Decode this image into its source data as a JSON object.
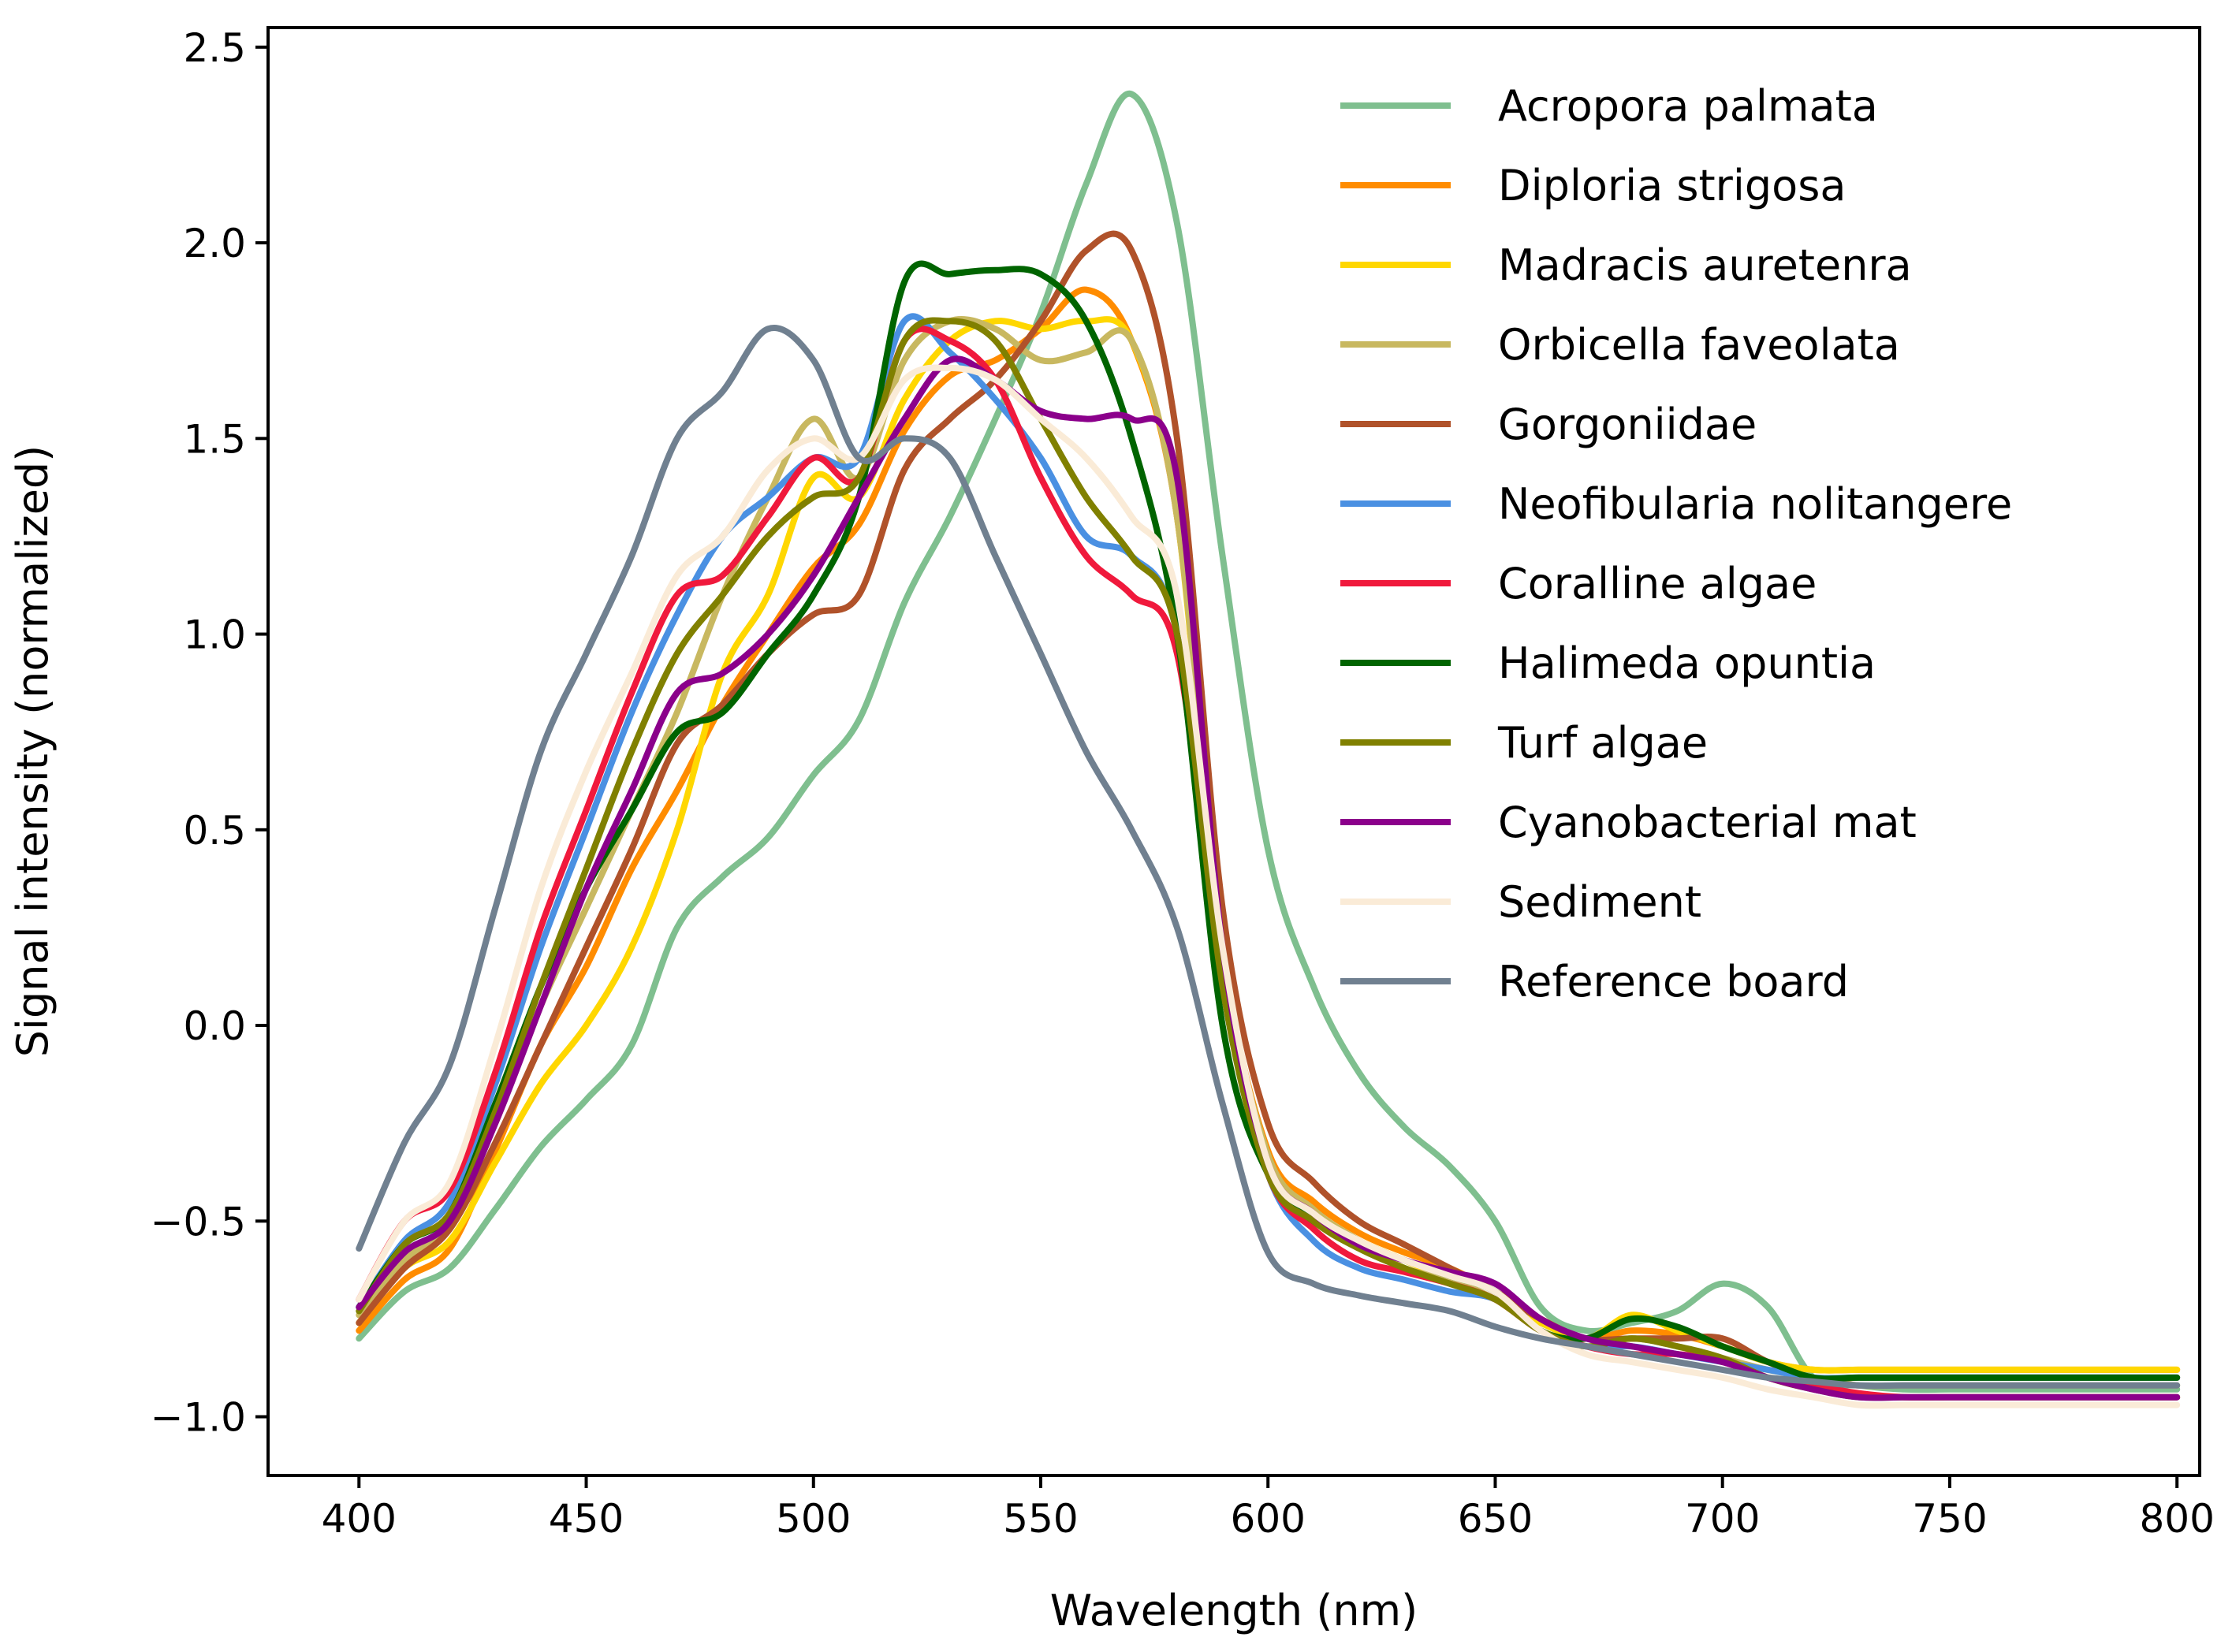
{
  "chart_data": {
    "type": "line",
    "title": "",
    "xlabel": "Wavelength (nm)",
    "ylabel": "Signal intensity (normalized)",
    "xlim": [
      380,
      805
    ],
    "ylim": [
      -1.15,
      2.55
    ],
    "xticks": [
      400,
      450,
      500,
      550,
      600,
      650,
      700,
      750,
      800
    ],
    "xtick_labels": [
      "400",
      "450",
      "500",
      "550",
      "600",
      "650",
      "700",
      "750",
      "800"
    ],
    "yticks": [
      -1.0,
      -0.5,
      0.0,
      0.5,
      1.0,
      1.5,
      2.0,
      2.5
    ],
    "ytick_labels": [
      "−1.0",
      "−0.5",
      "0.0",
      "0.5",
      "1.0",
      "1.5",
      "2.0",
      "2.5"
    ],
    "grid": false,
    "legend_position": "top-right",
    "x": [
      400,
      410,
      420,
      430,
      440,
      450,
      460,
      470,
      480,
      490,
      500,
      510,
      520,
      530,
      540,
      550,
      560,
      570,
      580,
      590,
      600,
      610,
      620,
      630,
      640,
      650,
      660,
      670,
      680,
      690,
      700,
      710,
      720,
      730,
      740,
      750,
      760,
      770,
      780,
      790,
      800
    ],
    "series": [
      {
        "name": "Acropora palmata",
        "color": "#7fbf8f",
        "values": [
          -0.8,
          -0.68,
          -0.62,
          -0.47,
          -0.31,
          -0.19,
          -0.05,
          0.25,
          0.38,
          0.48,
          0.64,
          0.78,
          1.08,
          1.3,
          1.55,
          1.82,
          2.15,
          2.38,
          2.05,
          1.2,
          0.45,
          0.1,
          -0.12,
          -0.26,
          -0.36,
          -0.5,
          -0.72,
          -0.78,
          -0.76,
          -0.73,
          -0.66,
          -0.72,
          -0.9,
          -0.92,
          -0.93,
          -0.93,
          -0.93,
          -0.93,
          -0.93,
          -0.93,
          -0.93
        ]
      },
      {
        "name": "Diploria strigosa",
        "color": "#ff8c00",
        "values": [
          -0.78,
          -0.65,
          -0.57,
          -0.32,
          -0.05,
          0.15,
          0.4,
          0.6,
          0.82,
          1.0,
          1.17,
          1.28,
          1.52,
          1.66,
          1.7,
          1.78,
          1.88,
          1.75,
          1.3,
          0.2,
          -0.32,
          -0.45,
          -0.53,
          -0.58,
          -0.62,
          -0.68,
          -0.75,
          -0.8,
          -0.78,
          -0.79,
          -0.82,
          -0.86,
          -0.88,
          -0.88,
          -0.88,
          -0.88,
          -0.88,
          -0.88,
          -0.88,
          -0.88,
          -0.88
        ]
      },
      {
        "name": "Madracis auretenra",
        "color": "#ffd700",
        "values": [
          -0.76,
          -0.62,
          -0.55,
          -0.35,
          -0.15,
          0.0,
          0.2,
          0.5,
          0.9,
          1.1,
          1.4,
          1.35,
          1.6,
          1.75,
          1.8,
          1.78,
          1.8,
          1.75,
          1.3,
          0.15,
          -0.35,
          -0.48,
          -0.55,
          -0.6,
          -0.65,
          -0.7,
          -0.76,
          -0.8,
          -0.74,
          -0.78,
          -0.82,
          -0.86,
          -0.88,
          -0.88,
          -0.88,
          -0.88,
          -0.88,
          -0.88,
          -0.88,
          -0.88,
          -0.88
        ]
      },
      {
        "name": "Orbicella faveolata",
        "color": "#c8b860",
        "values": [
          -0.74,
          -0.6,
          -0.5,
          -0.25,
          0.05,
          0.3,
          0.55,
          0.8,
          1.1,
          1.35,
          1.55,
          1.4,
          1.7,
          1.8,
          1.78,
          1.7,
          1.72,
          1.75,
          1.3,
          0.2,
          -0.33,
          -0.47,
          -0.55,
          -0.62,
          -0.65,
          -0.7,
          -0.78,
          -0.82,
          -0.8,
          -0.82,
          -0.85,
          -0.88,
          -0.9,
          -0.92,
          -0.92,
          -0.92,
          -0.92,
          -0.92,
          -0.92,
          -0.92,
          -0.92
        ]
      },
      {
        "name": "Gorgoniidae",
        "color": "#b0522a",
        "values": [
          -0.76,
          -0.62,
          -0.52,
          -0.3,
          -0.05,
          0.2,
          0.45,
          0.72,
          0.82,
          0.95,
          1.05,
          1.1,
          1.42,
          1.55,
          1.65,
          1.8,
          1.98,
          1.98,
          1.5,
          0.3,
          -0.25,
          -0.4,
          -0.5,
          -0.56,
          -0.62,
          -0.68,
          -0.75,
          -0.8,
          -0.8,
          -0.8,
          -0.8,
          -0.86,
          -0.9,
          -0.9,
          -0.9,
          -0.9,
          -0.9,
          -0.9,
          -0.9,
          -0.9,
          -0.9
        ]
      },
      {
        "name": "Neofibularia nolitangere",
        "color": "#4a90e2",
        "values": [
          -0.72,
          -0.55,
          -0.45,
          -0.15,
          0.2,
          0.5,
          0.8,
          1.05,
          1.25,
          1.35,
          1.45,
          1.45,
          1.8,
          1.72,
          1.6,
          1.45,
          1.25,
          1.2,
          1.0,
          0.1,
          -0.38,
          -0.55,
          -0.62,
          -0.65,
          -0.68,
          -0.7,
          -0.78,
          -0.82,
          -0.82,
          -0.84,
          -0.86,
          -0.88,
          -0.9,
          -0.9,
          -0.9,
          -0.9,
          -0.9,
          -0.9,
          -0.9,
          -0.9,
          -0.9
        ]
      },
      {
        "name": "Coralline algae",
        "color": "#f0193c",
        "values": [
          -0.7,
          -0.5,
          -0.42,
          -0.12,
          0.25,
          0.55,
          0.85,
          1.1,
          1.15,
          1.3,
          1.45,
          1.4,
          1.75,
          1.75,
          1.65,
          1.4,
          1.2,
          1.1,
          0.95,
          0.1,
          -0.38,
          -0.52,
          -0.6,
          -0.63,
          -0.66,
          -0.7,
          -0.78,
          -0.82,
          -0.84,
          -0.84,
          -0.86,
          -0.9,
          -0.92,
          -0.94,
          -0.95,
          -0.95,
          -0.95,
          -0.95,
          -0.95,
          -0.95,
          -0.95
        ]
      },
      {
        "name": "Halimeda opuntia",
        "color": "#006400",
        "values": [
          -0.72,
          -0.56,
          -0.48,
          -0.2,
          0.1,
          0.35,
          0.55,
          0.75,
          0.8,
          0.95,
          1.1,
          1.35,
          1.9,
          1.92,
          1.93,
          1.92,
          1.8,
          1.5,
          1.0,
          0.0,
          -0.38,
          -0.5,
          -0.56,
          -0.6,
          -0.64,
          -0.68,
          -0.78,
          -0.8,
          -0.75,
          -0.77,
          -0.82,
          -0.86,
          -0.9,
          -0.9,
          -0.9,
          -0.9,
          -0.9,
          -0.9,
          -0.9,
          -0.9,
          -0.9
        ]
      },
      {
        "name": "Turf algae",
        "color": "#808000",
        "values": [
          -0.73,
          -0.56,
          -0.48,
          -0.22,
          0.1,
          0.4,
          0.7,
          0.95,
          1.1,
          1.25,
          1.35,
          1.4,
          1.75,
          1.8,
          1.75,
          1.55,
          1.35,
          1.2,
          1.0,
          0.1,
          -0.38,
          -0.5,
          -0.57,
          -0.62,
          -0.66,
          -0.7,
          -0.78,
          -0.82,
          -0.8,
          -0.82,
          -0.85,
          -0.9,
          -0.93,
          -0.95,
          -0.95,
          -0.95,
          -0.95,
          -0.95,
          -0.95,
          -0.95,
          -0.95
        ]
      },
      {
        "name": "Cyanobacterial mat",
        "color": "#8b008b",
        "values": [
          -0.72,
          -0.58,
          -0.5,
          -0.25,
          0.05,
          0.35,
          0.6,
          0.85,
          0.9,
          1.0,
          1.15,
          1.35,
          1.55,
          1.7,
          1.65,
          1.57,
          1.55,
          1.55,
          1.4,
          0.2,
          -0.35,
          -0.48,
          -0.56,
          -0.6,
          -0.63,
          -0.66,
          -0.75,
          -0.8,
          -0.82,
          -0.84,
          -0.86,
          -0.9,
          -0.93,
          -0.95,
          -0.95,
          -0.95,
          -0.95,
          -0.95,
          -0.95,
          -0.95,
          -0.95
        ]
      },
      {
        "name": "Sediment",
        "color": "#faebd7",
        "values": [
          -0.7,
          -0.5,
          -0.4,
          -0.05,
          0.35,
          0.65,
          0.9,
          1.15,
          1.25,
          1.42,
          1.5,
          1.45,
          1.65,
          1.68,
          1.65,
          1.55,
          1.45,
          1.3,
          1.1,
          0.2,
          -0.35,
          -0.48,
          -0.55,
          -0.6,
          -0.64,
          -0.68,
          -0.78,
          -0.84,
          -0.86,
          -0.88,
          -0.9,
          -0.93,
          -0.95,
          -0.97,
          -0.97,
          -0.97,
          -0.97,
          -0.97,
          -0.97,
          -0.97,
          -0.97
        ]
      },
      {
        "name": "Reference board",
        "color": "#708090",
        "values": [
          -0.57,
          -0.3,
          -0.1,
          0.3,
          0.7,
          0.95,
          1.2,
          1.5,
          1.62,
          1.78,
          1.7,
          1.45,
          1.5,
          1.45,
          1.2,
          0.95,
          0.7,
          0.5,
          0.25,
          -0.2,
          -0.58,
          -0.66,
          -0.69,
          -0.71,
          -0.73,
          -0.77,
          -0.8,
          -0.82,
          -0.84,
          -0.86,
          -0.88,
          -0.9,
          -0.91,
          -0.92,
          -0.92,
          -0.92,
          -0.92,
          -0.92,
          -0.92,
          -0.92,
          -0.92
        ]
      }
    ]
  }
}
